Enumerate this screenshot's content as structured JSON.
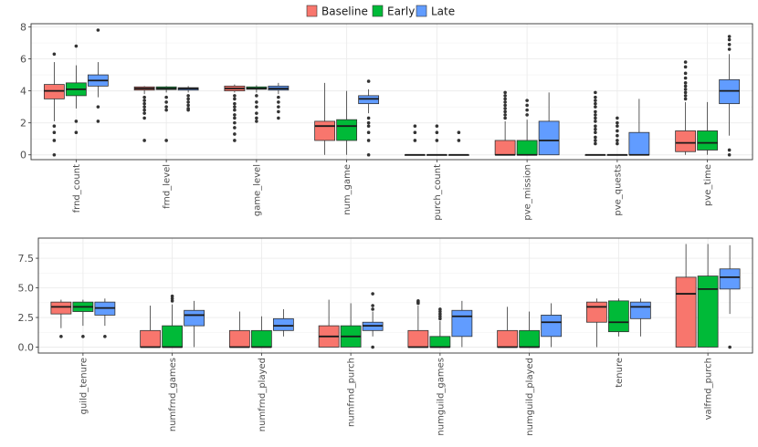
{
  "legend": {
    "items": [
      {
        "label": "Baseline",
        "color": "#F8766D"
      },
      {
        "label": "Early",
        "color": "#00BA38"
      },
      {
        "label": "Late",
        "color": "#619CFF"
      }
    ]
  },
  "chart_data": [
    {
      "type": "boxplot",
      "title": "",
      "xlabel": "",
      "ylabel": "",
      "ylim": [
        -0.3,
        8.2
      ],
      "yticks": [
        0,
        2,
        4,
        6,
        8
      ],
      "ytick_labels": [
        "0",
        "2",
        "4",
        "6",
        "8"
      ],
      "grid": true,
      "legend_position": "top",
      "categories": [
        "frnd_count",
        "frnd_level",
        "game_level",
        "num_game",
        "purch_count",
        "pve_mission",
        "pve_quests",
        "pve_time"
      ],
      "series": [
        {
          "name": "Baseline",
          "color": "#F8766D",
          "boxes": [
            {
              "q1": 3.5,
              "median": 4.0,
              "q3": 4.4,
              "low": 2.1,
              "high": 5.8,
              "outliers": [
                1.8,
                1.4,
                0.9,
                0.0,
                6.3
              ]
            },
            {
              "q1": 4.05,
              "median": 4.15,
              "q3": 4.25,
              "low": 3.8,
              "high": 4.3,
              "outliers": [
                3.6,
                3.4,
                3.2,
                3.0,
                2.8,
                2.6,
                2.3,
                0.9
              ]
            },
            {
              "q1": 4.0,
              "median": 4.15,
              "q3": 4.3,
              "low": 3.9,
              "high": 4.4,
              "outliers": [
                3.7,
                3.5,
                3.2,
                3.0,
                2.8,
                2.5,
                2.3,
                2.0,
                1.7,
                1.3,
                0.9
              ]
            },
            {
              "q1": 0.9,
              "median": 1.8,
              "q3": 2.1,
              "low": 0.0,
              "high": 4.5,
              "outliers": []
            },
            {
              "q1": 0.0,
              "median": 0.0,
              "q3": 0.0,
              "low": 0.0,
              "high": 0.0,
              "outliers": [
                1.8,
                1.4,
                0.9
              ]
            },
            {
              "q1": 0.0,
              "median": 0.0,
              "q3": 0.9,
              "low": 0.0,
              "high": 2.1,
              "outliers": [
                2.3,
                2.5,
                2.7,
                2.9,
                3.1,
                3.3,
                3.5,
                3.7,
                3.9
              ]
            },
            {
              "q1": 0.0,
              "median": 0.0,
              "q3": 0.0,
              "low": 0.0,
              "high": 0.0,
              "outliers": [
                0.7,
                0.9,
                1.1,
                1.4,
                1.6,
                1.8,
                2.1,
                2.3,
                2.5,
                2.7,
                3.0,
                3.2,
                3.4,
                3.6,
                3.9
              ]
            },
            {
              "q1": 0.2,
              "median": 0.75,
              "q3": 1.5,
              "low": 0.0,
              "high": 3.3,
              "outliers": [
                3.5,
                3.7,
                3.9,
                4.1,
                4.3,
                4.5,
                4.8,
                5.1,
                5.5,
                5.8
              ]
            }
          ]
        },
        {
          "name": "Early",
          "color": "#00BA38",
          "boxes": [
            {
              "q1": 3.7,
              "median": 4.1,
              "q3": 4.5,
              "low": 2.9,
              "high": 5.6,
              "outliers": [
                2.1,
                1.4,
                6.8
              ]
            },
            {
              "q1": 4.08,
              "median": 4.15,
              "q3": 4.25,
              "low": 3.9,
              "high": 4.3,
              "outliers": [
                3.6,
                3.3,
                3.0,
                2.8,
                0.9
              ]
            },
            {
              "q1": 4.1,
              "median": 4.15,
              "q3": 4.25,
              "low": 3.9,
              "high": 4.35,
              "outliers": [
                3.7,
                3.3,
                3.0,
                2.6,
                2.3,
                2.1
              ]
            },
            {
              "q1": 0.9,
              "median": 1.8,
              "q3": 2.2,
              "low": 0.0,
              "high": 4.0,
              "outliers": []
            },
            {
              "q1": 0.0,
              "median": 0.0,
              "q3": 0.0,
              "low": 0.0,
              "high": 0.0,
              "outliers": [
                1.8,
                1.4,
                0.9
              ]
            },
            {
              "q1": 0.0,
              "median": 0.0,
              "q3": 0.9,
              "low": 0.0,
              "high": 2.2,
              "outliers": [
                2.5,
                2.8,
                3.1,
                3.4
              ]
            },
            {
              "q1": 0.0,
              "median": 0.0,
              "q3": 0.0,
              "low": 0.0,
              "high": 0.0,
              "outliers": [
                0.7,
                0.9,
                1.2,
                1.5,
                1.8,
                2.0,
                2.3
              ]
            },
            {
              "q1": 0.3,
              "median": 0.75,
              "q3": 1.5,
              "low": 0.0,
              "high": 3.3,
              "outliers": []
            }
          ]
        },
        {
          "name": "Late",
          "color": "#619CFF",
          "boxes": [
            {
              "q1": 4.3,
              "median": 4.65,
              "q3": 5.0,
              "low": 3.6,
              "high": 5.8,
              "outliers": [
                3.0,
                2.1,
                7.8
              ]
            },
            {
              "q1": 4.05,
              "median": 4.15,
              "q3": 4.2,
              "low": 3.9,
              "high": 4.3,
              "outliers": [
                3.7,
                3.5,
                3.3,
                3.1,
                2.9,
                2.8
              ]
            },
            {
              "q1": 4.05,
              "median": 4.15,
              "q3": 4.3,
              "low": 3.8,
              "high": 4.5,
              "outliers": [
                3.6,
                3.3,
                3.0,
                2.7,
                2.3
              ]
            },
            {
              "q1": 3.2,
              "median": 3.5,
              "q3": 3.7,
              "low": 2.6,
              "high": 4.1,
              "outliers": [
                4.6,
                2.3,
                2.0,
                1.8,
                1.4,
                0.9,
                0.0
              ]
            },
            {
              "q1": 0.0,
              "median": 0.0,
              "q3": 0.0,
              "low": 0.0,
              "high": 0.0,
              "outliers": [
                1.4,
                0.9
              ]
            },
            {
              "q1": 0.0,
              "median": 0.9,
              "q3": 2.1,
              "low": 0.0,
              "high": 3.9,
              "outliers": []
            },
            {
              "q1": 0.0,
              "median": 0.0,
              "q3": 1.4,
              "low": 0.0,
              "high": 3.5,
              "outliers": []
            },
            {
              "q1": 3.2,
              "median": 4.0,
              "q3": 4.7,
              "low": 1.2,
              "high": 6.3,
              "outliers": [
                0.3,
                0.0,
                6.6,
                6.9,
                7.2,
                7.4
              ]
            }
          ]
        }
      ]
    },
    {
      "type": "boxplot",
      "title": "",
      "xlabel": "",
      "ylabel": "",
      "ylim": [
        -0.5,
        9.2
      ],
      "yticks": [
        0,
        2.5,
        5,
        7.5
      ],
      "ytick_labels": [
        "0.0",
        "2.5",
        "5.0",
        "7.5"
      ],
      "grid": true,
      "legend_position": "top",
      "categories": [
        "guild_tenure",
        "numfrnd_games",
        "numfrnd_played",
        "numfrnd_purch",
        "numguild_games",
        "numguild_played",
        "tenure",
        "valfrnd_purch"
      ],
      "series": [
        {
          "name": "Baseline",
          "color": "#F8766D",
          "boxes": [
            {
              "q1": 2.8,
              "median": 3.4,
              "q3": 3.8,
              "low": 1.6,
              "high": 4.0,
              "outliers": [
                0.9
              ]
            },
            {
              "q1": 0.0,
              "median": 0.0,
              "q3": 1.4,
              "low": 0.0,
              "high": 3.5,
              "outliers": []
            },
            {
              "q1": 0.0,
              "median": 0.0,
              "q3": 1.4,
              "low": 0.0,
              "high": 3.0,
              "outliers": []
            },
            {
              "q1": 0.0,
              "median": 0.9,
              "q3": 1.8,
              "low": 0.0,
              "high": 4.0,
              "outliers": []
            },
            {
              "q1": 0.0,
              "median": 0.0,
              "q3": 1.4,
              "low": 0.0,
              "high": 3.5,
              "outliers": [
                3.7,
                3.8,
                3.9
              ]
            },
            {
              "q1": 0.0,
              "median": 0.0,
              "q3": 1.4,
              "low": 0.0,
              "high": 3.4,
              "outliers": []
            },
            {
              "q1": 2.1,
              "median": 3.4,
              "q3": 3.8,
              "low": 0.0,
              "high": 4.1,
              "outliers": []
            },
            {
              "q1": 0.0,
              "median": 4.5,
              "q3": 5.9,
              "low": 0.0,
              "high": 8.7,
              "outliers": []
            }
          ]
        },
        {
          "name": "Early",
          "color": "#00BA38",
          "boxes": [
            {
              "q1": 3.0,
              "median": 3.4,
              "q3": 3.8,
              "low": 1.8,
              "high": 4.0,
              "outliers": [
                0.9
              ]
            },
            {
              "q1": 0.0,
              "median": 0.0,
              "q3": 1.8,
              "low": 0.0,
              "high": 3.6,
              "outliers": [
                3.9,
                4.1,
                4.3
              ]
            },
            {
              "q1": 0.0,
              "median": 0.0,
              "q3": 1.4,
              "low": 0.0,
              "high": 2.6,
              "outliers": []
            },
            {
              "q1": 0.0,
              "median": 0.9,
              "q3": 1.8,
              "low": 0.0,
              "high": 3.7,
              "outliers": []
            },
            {
              "q1": 0.0,
              "median": 0.0,
              "q3": 0.9,
              "low": 0.0,
              "high": 2.2,
              "outliers": [
                2.4,
                2.6,
                2.8,
                3.0,
                3.2
              ]
            },
            {
              "q1": 0.0,
              "median": 0.0,
              "q3": 1.4,
              "low": 0.0,
              "high": 3.0,
              "outliers": []
            },
            {
              "q1": 1.3,
              "median": 2.1,
              "q3": 3.9,
              "low": 0.9,
              "high": 4.1,
              "outliers": []
            },
            {
              "q1": 0.0,
              "median": 4.9,
              "q3": 6.0,
              "low": 0.0,
              "high": 8.7,
              "outliers": []
            }
          ]
        },
        {
          "name": "Late",
          "color": "#619CFF",
          "boxes": [
            {
              "q1": 2.7,
              "median": 3.3,
              "q3": 3.8,
              "low": 1.8,
              "high": 4.1,
              "outliers": [
                0.9
              ]
            },
            {
              "q1": 1.8,
              "median": 2.7,
              "q3": 3.1,
              "low": 0.0,
              "high": 3.9,
              "outliers": []
            },
            {
              "q1": 1.4,
              "median": 1.8,
              "q3": 2.4,
              "low": 0.9,
              "high": 3.2,
              "outliers": []
            },
            {
              "q1": 1.4,
              "median": 1.8,
              "q3": 2.1,
              "low": 0.9,
              "high": 3.0,
              "outliers": [
                0.0,
                3.2,
                3.5,
                4.5
              ]
            },
            {
              "q1": 0.9,
              "median": 2.6,
              "q3": 3.1,
              "low": 0.0,
              "high": 3.9,
              "outliers": []
            },
            {
              "q1": 0.9,
              "median": 2.1,
              "q3": 2.7,
              "low": 0.0,
              "high": 3.7,
              "outliers": []
            },
            {
              "q1": 2.4,
              "median": 3.4,
              "q3": 3.8,
              "low": 0.9,
              "high": 4.1,
              "outliers": []
            },
            {
              "q1": 4.9,
              "median": 5.9,
              "q3": 6.6,
              "low": 2.8,
              "high": 8.6,
              "outliers": [
                0.0
              ]
            }
          ]
        }
      ]
    }
  ]
}
